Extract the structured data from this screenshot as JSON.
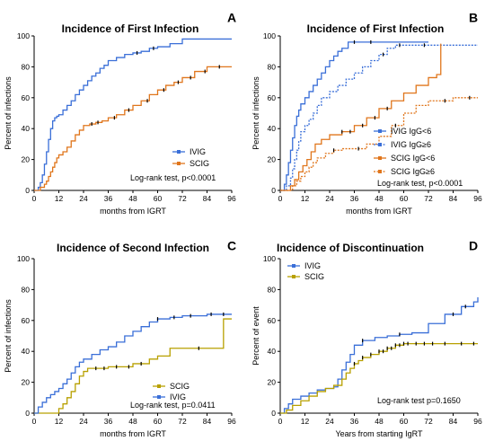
{
  "figure": {
    "panels": [
      {
        "letter": "A",
        "title": "Incidence of First Infection",
        "ylabel": "Percent of infections",
        "xlabel": "months from IGRT",
        "logrank": "Log-rank test, p<0.0001",
        "legend": [
          {
            "name": "IVIG",
            "color": "#3a6fd8",
            "dashed": false
          },
          {
            "name": "SCIG",
            "color": "#e0761c",
            "dashed": false
          }
        ]
      },
      {
        "letter": "B",
        "title": "Incidence of First Infection",
        "ylabel": "Percent of infections",
        "xlabel": "months from IGRT",
        "logrank": "Log-rank test, p<0.0001",
        "legend": [
          {
            "name": "IVIG IgG<6",
            "color": "#3a6fd8",
            "dashed": false
          },
          {
            "name": "IVIG IgG≥6",
            "color": "#3a6fd8",
            "dashed": true
          },
          {
            "name": "SCIG IgG<6",
            "color": "#e0761c",
            "dashed": false
          },
          {
            "name": "SCIG IgG≥6",
            "color": "#e0761c",
            "dashed": true
          }
        ]
      },
      {
        "letter": "C",
        "title": "Incidence of Second Infection",
        "ylabel": "Percent of infections",
        "xlabel": "months from IGRT",
        "logrank": "Log-rank test, p=0.0411",
        "legend": [
          {
            "name": "SCIG",
            "color": "#b8a000",
            "dashed": false
          },
          {
            "name": "IVIG",
            "color": "#3a6fd8",
            "dashed": false
          }
        ]
      },
      {
        "letter": "D",
        "title": "Incidence of Discontinuation",
        "ylabel": "Percent of event",
        "xlabel": "Years from starting IgRT",
        "logrank": "Log-rank test p=0.1650",
        "legend": [
          {
            "name": "IVIG",
            "color": "#3a6fd8",
            "dashed": false
          },
          {
            "name": "SCIG",
            "color": "#b8a000",
            "dashed": false
          }
        ]
      }
    ]
  },
  "chart_data": [
    {
      "type": "line",
      "step": true,
      "title": "Incidence of First Infection",
      "xlabel": "months from IGRT",
      "ylabel": "Percent of infections",
      "xlim": [
        0,
        96
      ],
      "ylim": [
        0,
        100
      ],
      "xticks": [
        0,
        12,
        24,
        36,
        48,
        60,
        72,
        84,
        96
      ],
      "yticks": [
        0,
        20,
        40,
        60,
        80,
        100
      ],
      "series": [
        {
          "name": "IVIG",
          "color": "#3a6fd8",
          "dashed": false,
          "x": [
            0,
            2,
            3,
            4,
            5,
            6,
            7,
            8,
            9,
            10,
            11,
            12,
            14,
            16,
            18,
            20,
            22,
            24,
            26,
            28,
            30,
            32,
            34,
            36,
            40,
            44,
            48,
            52,
            56,
            60,
            66,
            72,
            96
          ],
          "y": [
            0,
            2,
            5,
            10,
            17,
            25,
            33,
            40,
            45,
            47,
            48,
            49,
            52,
            55,
            58,
            62,
            65,
            68,
            71,
            74,
            76,
            79,
            81,
            84,
            86,
            88,
            89,
            90,
            92,
            93,
            95,
            98,
            98
          ],
          "censor_x": [
            50,
            58
          ]
        },
        {
          "name": "SCIG",
          "color": "#e0761c",
          "dashed": false,
          "x": [
            0,
            3,
            5,
            6,
            7,
            8,
            9,
            10,
            11,
            12,
            14,
            16,
            18,
            20,
            22,
            24,
            27,
            30,
            33,
            36,
            40,
            44,
            48,
            52,
            56,
            60,
            64,
            68,
            72,
            78,
            84,
            90,
            96
          ],
          "y": [
            0,
            2,
            4,
            6,
            9,
            12,
            15,
            18,
            21,
            23,
            25,
            28,
            32,
            36,
            39,
            42,
            43,
            44,
            45,
            47,
            49,
            52,
            55,
            58,
            62,
            65,
            68,
            70,
            73,
            77,
            80,
            80,
            80
          ],
          "censor_x": [
            28,
            31,
            39,
            46,
            55,
            63,
            70,
            76,
            83,
            90
          ]
        }
      ],
      "legend": [
        "IVIG",
        "SCIG"
      ],
      "legend_position": "bottom-right",
      "annotation": "Log-rank test, p<0.0001"
    },
    {
      "type": "line",
      "step": true,
      "title": "Incidence of First Infection",
      "xlabel": "months from IGRT",
      "ylabel": "Percent of infections",
      "xlim": [
        0,
        96
      ],
      "ylim": [
        0,
        100
      ],
      "xticks": [
        0,
        12,
        24,
        36,
        48,
        60,
        72,
        84,
        96
      ],
      "yticks": [
        0,
        20,
        40,
        60,
        80,
        100
      ],
      "series": [
        {
          "name": "IVIG IgG<6",
          "color": "#3a6fd8",
          "dashed": false,
          "x": [
            0,
            2,
            3,
            4,
            5,
            6,
            7,
            8,
            9,
            10,
            12,
            14,
            16,
            18,
            20,
            22,
            24,
            26,
            28,
            30,
            33,
            36,
            48,
            72
          ],
          "y": [
            0,
            4,
            10,
            18,
            26,
            34,
            42,
            48,
            52,
            56,
            60,
            64,
            68,
            72,
            76,
            80,
            84,
            87,
            90,
            92,
            96,
            96,
            96,
            96
          ],
          "censor_x": [
            36,
            44
          ]
        },
        {
          "name": "IVIG IgG≥6",
          "color": "#3a6fd8",
          "dashed": true,
          "x": [
            0,
            3,
            5,
            6,
            7,
            8,
            9,
            10,
            12,
            14,
            16,
            18,
            20,
            24,
            28,
            32,
            36,
            40,
            44,
            48,
            52,
            56,
            60,
            72,
            96
          ],
          "y": [
            0,
            3,
            8,
            14,
            20,
            26,
            32,
            38,
            42,
            46,
            50,
            55,
            60,
            64,
            68,
            72,
            76,
            80,
            84,
            88,
            92,
            94,
            94,
            94,
            94
          ],
          "censor_x": [
            50,
            58,
            70
          ]
        },
        {
          "name": "SCIG IgG<6",
          "color": "#e0761c",
          "dashed": false,
          "x": [
            0,
            5,
            7,
            9,
            11,
            13,
            15,
            17,
            20,
            24,
            30,
            36,
            42,
            48,
            54,
            60,
            66,
            72,
            76,
            78
          ],
          "y": [
            0,
            3,
            7,
            12,
            16,
            20,
            25,
            30,
            33,
            36,
            38,
            42,
            47,
            53,
            58,
            63,
            68,
            73,
            75,
            95
          ],
          "censor_x": [
            30,
            34,
            40,
            46,
            52
          ]
        },
        {
          "name": "SCIG IgG≥6",
          "color": "#e0761c",
          "dashed": true,
          "x": [
            0,
            6,
            8,
            10,
            12,
            14,
            16,
            18,
            22,
            26,
            30,
            36,
            42,
            48,
            54,
            60,
            66,
            72,
            84,
            96
          ],
          "y": [
            0,
            3,
            6,
            9,
            12,
            15,
            18,
            21,
            24,
            26,
            27,
            27,
            30,
            35,
            42,
            50,
            55,
            58,
            60,
            60
          ],
          "censor_x": [
            26,
            38,
            56,
            80,
            92
          ]
        }
      ],
      "legend": [
        "IVIG IgG<6",
        "IVIG IgG≥6",
        "SCIG IgG<6",
        "SCIG IgG≥6"
      ],
      "legend_position": "bottom-right",
      "annotation": "Log-rank test, p<0.0001"
    },
    {
      "type": "line",
      "step": true,
      "title": "Incidence of Second Infection",
      "xlabel": "months from IGRT",
      "ylabel": "Percent of infections",
      "xlim": [
        0,
        96
      ],
      "ylim": [
        0,
        100
      ],
      "xticks": [
        0,
        12,
        24,
        36,
        48,
        60,
        72,
        84,
        96
      ],
      "yticks": [
        0,
        20,
        40,
        60,
        80,
        100
      ],
      "series": [
        {
          "name": "SCIG",
          "color": "#b8a000",
          "dashed": false,
          "x": [
            0,
            12,
            14,
            16,
            18,
            20,
            22,
            24,
            26,
            30,
            36,
            48,
            56,
            60,
            66,
            72,
            84,
            92,
            96
          ],
          "y": [
            0,
            3,
            6,
            10,
            14,
            19,
            24,
            27,
            29,
            29,
            30,
            32,
            35,
            37,
            42,
            42,
            42,
            61,
            61
          ],
          "censor_x": [
            30,
            34,
            40,
            46,
            52,
            80
          ]
        },
        {
          "name": "IVIG",
          "color": "#3a6fd8",
          "dashed": false,
          "x": [
            0,
            2,
            4,
            6,
            8,
            10,
            12,
            14,
            16,
            18,
            20,
            22,
            24,
            28,
            32,
            36,
            40,
            44,
            48,
            52,
            56,
            60,
            66,
            72,
            84,
            90,
            96
          ],
          "y": [
            0,
            4,
            7,
            10,
            12,
            14,
            16,
            19,
            22,
            26,
            30,
            33,
            35,
            38,
            41,
            43,
            46,
            50,
            53,
            56,
            59,
            61,
            62,
            63,
            64,
            64,
            64
          ],
          "censor_x": [
            60,
            68,
            76,
            86,
            92
          ]
        }
      ],
      "legend": [
        "SCIG",
        "IVIG"
      ],
      "legend_position": "bottom-right",
      "annotation": "Log-rank test, p=0.0411"
    },
    {
      "type": "line",
      "step": true,
      "title": "Incidence of Discontinuation",
      "xlabel": "Years from starting IgRT",
      "ylabel": "Percent of event",
      "xlim": [
        0,
        96
      ],
      "ylim": [
        0,
        100
      ],
      "xticks": [
        0,
        12,
        24,
        36,
        48,
        60,
        72,
        84,
        96
      ],
      "yticks": [
        0,
        20,
        40,
        60,
        80,
        100
      ],
      "series": [
        {
          "name": "IVIG",
          "color": "#3a6fd8",
          "dashed": false,
          "x": [
            0,
            2,
            4,
            6,
            10,
            14,
            18,
            22,
            26,
            28,
            30,
            32,
            34,
            36,
            40,
            46,
            52,
            58,
            64,
            72,
            80,
            88,
            94,
            96
          ],
          "y": [
            0,
            3,
            6,
            9,
            11,
            13,
            15,
            16,
            17,
            22,
            28,
            33,
            38,
            44,
            47,
            49,
            50,
            51,
            52,
            58,
            64,
            69,
            72,
            75
          ],
          "censor_x": [
            40,
            58,
            84,
            90
          ]
        },
        {
          "name": "SCIG",
          "color": "#b8a000",
          "dashed": false,
          "x": [
            0,
            3,
            6,
            10,
            14,
            18,
            22,
            26,
            30,
            32,
            34,
            36,
            38,
            40,
            44,
            48,
            52,
            56,
            60,
            96
          ],
          "y": [
            0,
            2,
            5,
            8,
            11,
            14,
            16,
            18,
            22,
            26,
            29,
            32,
            34,
            36,
            38,
            40,
            42,
            44,
            45,
            45
          ],
          "censor_x": [
            36,
            40,
            44,
            48,
            50,
            52,
            54,
            56,
            58,
            60,
            62,
            66,
            70,
            74,
            80,
            88,
            94
          ]
        }
      ],
      "legend": [
        "IVIG",
        "SCIG"
      ],
      "legend_position": "top-left",
      "annotation": "Log-rank test p=0.1650"
    }
  ]
}
